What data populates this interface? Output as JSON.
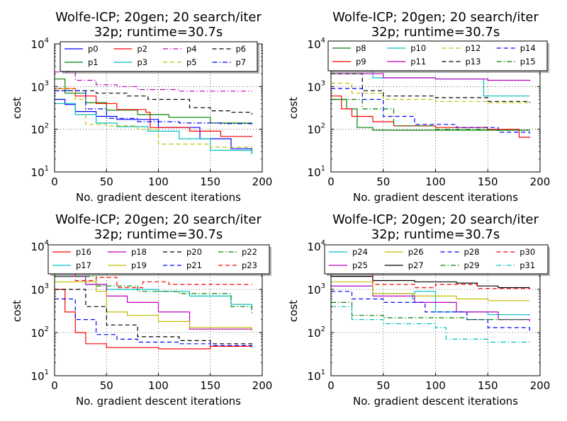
{
  "chart_data": [
    {
      "type": "line",
      "title": "Wolfe-ICP; 20gen; 20 search/iter",
      "subtitle": "32p; runtime=30.7s",
      "xlabel": "No. gradient descent iterations",
      "ylabel": "cost",
      "xlim": [
        0,
        200
      ],
      "ylim": [
        10,
        10000
      ],
      "yscale": "log",
      "xticks": [
        "0",
        "50",
        "100",
        "150",
        "200"
      ],
      "yticks": [
        {
          "base": "10",
          "exp": "1"
        },
        {
          "base": "10",
          "exp": "2"
        },
        {
          "base": "10",
          "exp": "3"
        },
        {
          "base": "10",
          "exp": "4"
        }
      ],
      "grid": true,
      "legend": {
        "placement": "top",
        "ncol": 4
      },
      "series": [
        {
          "name": "p0",
          "color": "#0000ff",
          "dash": "solid",
          "x": [
            0,
            10,
            20,
            40,
            60,
            100,
            140,
            170,
            190
          ],
          "y": [
            500,
            380,
            260,
            200,
            170,
            110,
            60,
            35,
            27
          ]
        },
        {
          "name": "p1",
          "color": "#008000",
          "dash": "solid",
          "x": [
            0,
            10,
            30,
            50,
            80,
            110,
            150,
            190
          ],
          "y": [
            1500,
            700,
            420,
            280,
            220,
            190,
            140,
            130
          ]
        },
        {
          "name": "p2",
          "color": "#ff0000",
          "dash": "solid",
          "x": [
            0,
            20,
            40,
            60,
            88,
            92,
            130,
            160,
            190
          ],
          "y": [
            900,
            600,
            400,
            290,
            250,
            110,
            90,
            68,
            66
          ]
        },
        {
          "name": "p3",
          "color": "#00bfbf",
          "dash": "solid",
          "x": [
            0,
            20,
            40,
            60,
            90,
            120,
            150,
            190
          ],
          "y": [
            400,
            220,
            140,
            115,
            90,
            60,
            32,
            26
          ]
        },
        {
          "name": "p4",
          "color": "#bf00bf",
          "dash": "dashdot",
          "x": [
            0,
            20,
            40,
            60,
            80,
            120,
            190
          ],
          "y": [
            2200,
            1400,
            1100,
            1000,
            850,
            780,
            770
          ]
        },
        {
          "name": "p5",
          "color": "#bfbf00",
          "dash": "dash",
          "x": [
            0,
            20,
            30,
            50,
            80,
            100,
            150,
            190
          ],
          "y": [
            900,
            500,
            130,
            120,
            100,
            45,
            38,
            35
          ]
        },
        {
          "name": "p6",
          "color": "#000000",
          "dash": "dash",
          "x": [
            0,
            40,
            70,
            90,
            130,
            150,
            170,
            190
          ],
          "y": [
            800,
            700,
            600,
            500,
            320,
            270,
            250,
            220
          ]
        },
        {
          "name": "p7",
          "color": "#0000ff",
          "dash": "dashdot",
          "x": [
            0,
            30,
            50,
            80,
            120,
            160,
            190
          ],
          "y": [
            800,
            300,
            180,
            150,
            140,
            135,
            133
          ]
        }
      ]
    },
    {
      "type": "line",
      "title": "Wolfe-ICP; 20gen; 20 search/iter",
      "subtitle": "32p; runtime=30.7s",
      "xlabel": "No. gradient descent iterations",
      "ylabel": "cost",
      "xlim": [
        0,
        200
      ],
      "ylim": [
        10,
        10000
      ],
      "yscale": "log",
      "xticks": [
        "0",
        "50",
        "100",
        "150",
        "200"
      ],
      "yticks": [
        {
          "base": "10",
          "exp": "1"
        },
        {
          "base": "10",
          "exp": "2"
        },
        {
          "base": "10",
          "exp": "3"
        },
        {
          "base": "10",
          "exp": "4"
        }
      ],
      "grid": true,
      "legend": {
        "placement": "top",
        "ncol": 4
      },
      "series": [
        {
          "name": "p8",
          "color": "#008000",
          "dash": "solid",
          "x": [
            0,
            15,
            25,
            40,
            70,
            120,
            190
          ],
          "y": [
            500,
            300,
            110,
            95,
            95,
            95,
            93
          ]
        },
        {
          "name": "p9",
          "color": "#ff0000",
          "dash": "solid",
          "x": [
            0,
            10,
            20,
            40,
            60,
            100,
            150,
            180,
            190
          ],
          "y": [
            600,
            300,
            200,
            150,
            120,
            110,
            100,
            65,
            62
          ]
        },
        {
          "name": "p10",
          "color": "#00bfbf",
          "dash": "solid",
          "x": [
            0,
            40,
            100,
            143,
            146,
            190
          ],
          "y": [
            2500,
            1600,
            1500,
            1500,
            600,
            600
          ]
        },
        {
          "name": "p11",
          "color": "#bf00bf",
          "dash": "solid",
          "x": [
            0,
            50,
            100,
            150,
            190
          ],
          "y": [
            2000,
            1600,
            1500,
            1400,
            1350
          ]
        },
        {
          "name": "p12",
          "color": "#bfbf00",
          "dash": "dash",
          "x": [
            0,
            20,
            50,
            100,
            150,
            190
          ],
          "y": [
            1200,
            700,
            500,
            450,
            420,
            400
          ]
        },
        {
          "name": "p13",
          "color": "#000000",
          "dash": "dash",
          "x": [
            0,
            30,
            50,
            100,
            150,
            190
          ],
          "y": [
            2000,
            800,
            600,
            550,
            450,
            420
          ]
        },
        {
          "name": "p14",
          "color": "#0000ff",
          "dash": "dash",
          "x": [
            0,
            30,
            50,
            80,
            120,
            160,
            190
          ],
          "y": [
            900,
            500,
            200,
            130,
            110,
            85,
            80
          ]
        },
        {
          "name": "p15",
          "color": "#008000",
          "dash": "dashdot",
          "x": [
            0,
            30,
            60,
            100,
            150,
            190
          ],
          "y": [
            500,
            300,
            120,
            100,
            95,
            95
          ]
        }
      ]
    },
    {
      "type": "line",
      "title": "Wolfe-ICP; 20gen; 20 search/iter",
      "subtitle": "32p; runtime=30.7s",
      "xlabel": "No. gradient descent iterations",
      "ylabel": "cost",
      "xlim": [
        0,
        200
      ],
      "ylim": [
        10,
        10000
      ],
      "yscale": "log",
      "xticks": [
        "0",
        "50",
        "100",
        "150",
        "200"
      ],
      "yticks": [
        {
          "base": "10",
          "exp": "1"
        },
        {
          "base": "10",
          "exp": "2"
        },
        {
          "base": "10",
          "exp": "3"
        },
        {
          "base": "10",
          "exp": "4"
        }
      ],
      "grid": true,
      "legend": {
        "placement": "top",
        "ncol": 4
      },
      "series": [
        {
          "name": "p16",
          "color": "#ff0000",
          "dash": "solid",
          "x": [
            0,
            10,
            20,
            30,
            50,
            100,
            150,
            190
          ],
          "y": [
            1000,
            300,
            100,
            55,
            45,
            42,
            48,
            48
          ]
        },
        {
          "name": "p17",
          "color": "#00bfbf",
          "dash": "solid",
          "x": [
            0,
            30,
            50,
            100,
            130,
            170,
            190
          ],
          "y": [
            2000,
            1300,
            1000,
            900,
            700,
            450,
            350
          ]
        },
        {
          "name": "p18",
          "color": "#bf00bf",
          "dash": "solid",
          "x": [
            0,
            30,
            50,
            70,
            100,
            130,
            190
          ],
          "y": [
            2000,
            1300,
            700,
            500,
            300,
            120,
            110
          ]
        },
        {
          "name": "p19",
          "color": "#bfbf00",
          "dash": "solid",
          "x": [
            0,
            40,
            50,
            70,
            100,
            130,
            190
          ],
          "y": [
            1500,
            900,
            300,
            250,
            180,
            130,
            110
          ]
        },
        {
          "name": "p20",
          "color": "#000000",
          "dash": "dash",
          "x": [
            0,
            30,
            50,
            80,
            120,
            150,
            190
          ],
          "y": [
            1000,
            400,
            150,
            80,
            65,
            55,
            45
          ]
        },
        {
          "name": "p21",
          "color": "#0000ff",
          "dash": "dash",
          "x": [
            0,
            20,
            40,
            60,
            80,
            120,
            150,
            190
          ],
          "y": [
            600,
            200,
            90,
            70,
            60,
            55,
            50,
            42
          ]
        },
        {
          "name": "p22",
          "color": "#008000",
          "dash": "dashdot",
          "x": [
            0,
            40,
            80,
            120,
            170,
            190
          ],
          "y": [
            2000,
            1200,
            900,
            800,
            400,
            250
          ]
        },
        {
          "name": "p23",
          "color": "#ff0000",
          "dash": "dash",
          "x": [
            0,
            20,
            40,
            60,
            85,
            110,
            150,
            190
          ],
          "y": [
            2500,
            1600,
            1900,
            1100,
            1500,
            1300,
            1300,
            1300
          ]
        }
      ]
    },
    {
      "type": "line",
      "title": "Wolfe-ICP; 20gen; 20 search/iter",
      "subtitle": "32p; runtime=30.7s",
      "xlabel": "No. gradient descent iterations",
      "ylabel": "cost",
      "xlim": [
        0,
        200
      ],
      "ylim": [
        10,
        10000
      ],
      "yscale": "log",
      "xticks": [
        "0",
        "50",
        "100",
        "150",
        "200"
      ],
      "yticks": [
        {
          "base": "10",
          "exp": "1"
        },
        {
          "base": "10",
          "exp": "2"
        },
        {
          "base": "10",
          "exp": "3"
        },
        {
          "base": "10",
          "exp": "4"
        }
      ],
      "grid": true,
      "legend": {
        "placement": "top",
        "ncol": 4
      },
      "series": [
        {
          "name": "p24",
          "color": "#00bfbf",
          "dash": "solid",
          "x": [
            0,
            40,
            78,
            80,
            95,
            100,
            150,
            190
          ],
          "y": [
            1200,
            800,
            600,
            900,
            900,
            300,
            260,
            250
          ]
        },
        {
          "name": "p25",
          "color": "#bf00bf",
          "dash": "solid",
          "x": [
            0,
            40,
            80,
            120,
            160,
            190
          ],
          "y": [
            1200,
            700,
            500,
            300,
            200,
            180
          ]
        },
        {
          "name": "p26",
          "color": "#bfbf00",
          "dash": "solid",
          "x": [
            0,
            40,
            80,
            120,
            150,
            190
          ],
          "y": [
            1500,
            800,
            700,
            600,
            550,
            550
          ]
        },
        {
          "name": "p27",
          "color": "#000000",
          "dash": "solid",
          "x": [
            0,
            40,
            80,
            120,
            140,
            160,
            190
          ],
          "y": [
            2000,
            1600,
            1500,
            1400,
            1200,
            1100,
            1100
          ]
        },
        {
          "name": "p28",
          "color": "#0000ff",
          "dash": "dash",
          "x": [
            0,
            20,
            50,
            90,
            130,
            150,
            190
          ],
          "y": [
            900,
            600,
            500,
            300,
            200,
            130,
            110
          ]
        },
        {
          "name": "p29",
          "color": "#008000",
          "dash": "dashdot",
          "x": [
            0,
            20,
            50,
            90,
            130,
            190
          ],
          "y": [
            500,
            250,
            220,
            220,
            200,
            200
          ]
        },
        {
          "name": "p30",
          "color": "#ff0000",
          "dash": "dash",
          "x": [
            0,
            40,
            80,
            100,
            140,
            190
          ],
          "y": [
            2500,
            1300,
            1100,
            1300,
            1050,
            1000
          ]
        },
        {
          "name": "p31",
          "color": "#00bfbf",
          "dash": "dashdot",
          "x": [
            0,
            20,
            50,
            70,
            100,
            110,
            150,
            190
          ],
          "y": [
            400,
            200,
            160,
            160,
            130,
            70,
            60,
            60
          ]
        }
      ]
    }
  ]
}
